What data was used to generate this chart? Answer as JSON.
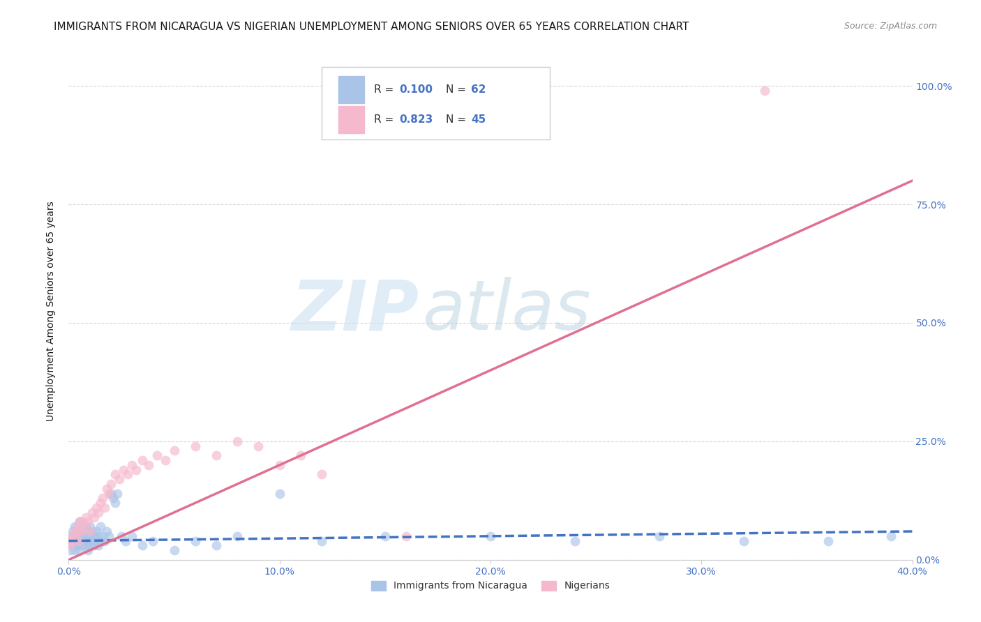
{
  "title": "IMMIGRANTS FROM NICARAGUA VS NIGERIAN UNEMPLOYMENT AMONG SENIORS OVER 65 YEARS CORRELATION CHART",
  "source": "Source: ZipAtlas.com",
  "xlabel_ticks": [
    "0.0%",
    "10.0%",
    "20.0%",
    "30.0%",
    "40.0%"
  ],
  "ylabel_ticks": [
    "0.0%",
    "25.0%",
    "50.0%",
    "75.0%",
    "100.0%"
  ],
  "ylabel_label": "Unemployment Among Seniors over 65 years",
  "xlim": [
    0.0,
    0.4
  ],
  "ylim": [
    0.0,
    1.05
  ],
  "watermark_zip": "ZIP",
  "watermark_atlas": "atlas",
  "bottom_legend": [
    {
      "label": "Immigrants from Nicaragua",
      "color": "#aac4e8"
    },
    {
      "label": "Nigerians",
      "color": "#f5b8cc"
    }
  ],
  "nicaragua_scatter_x": [
    0.001,
    0.001,
    0.002,
    0.002,
    0.002,
    0.003,
    0.003,
    0.003,
    0.004,
    0.004,
    0.004,
    0.005,
    0.005,
    0.005,
    0.006,
    0.006,
    0.007,
    0.007,
    0.008,
    0.008,
    0.008,
    0.009,
    0.009,
    0.01,
    0.01,
    0.01,
    0.011,
    0.011,
    0.012,
    0.012,
    0.013,
    0.013,
    0.014,
    0.014,
    0.015,
    0.015,
    0.016,
    0.017,
    0.018,
    0.019,
    0.02,
    0.021,
    0.022,
    0.023,
    0.025,
    0.027,
    0.03,
    0.035,
    0.04,
    0.05,
    0.06,
    0.07,
    0.08,
    0.1,
    0.12,
    0.15,
    0.2,
    0.24,
    0.28,
    0.32,
    0.36,
    0.39
  ],
  "nicaragua_scatter_y": [
    0.04,
    0.02,
    0.06,
    0.03,
    0.05,
    0.04,
    0.02,
    0.07,
    0.03,
    0.05,
    0.06,
    0.04,
    0.02,
    0.08,
    0.05,
    0.03,
    0.04,
    0.06,
    0.03,
    0.05,
    0.07,
    0.04,
    0.02,
    0.05,
    0.03,
    0.07,
    0.04,
    0.06,
    0.03,
    0.05,
    0.04,
    0.06,
    0.03,
    0.05,
    0.04,
    0.07,
    0.05,
    0.04,
    0.06,
    0.05,
    0.14,
    0.13,
    0.12,
    0.14,
    0.05,
    0.04,
    0.05,
    0.03,
    0.04,
    0.02,
    0.04,
    0.03,
    0.05,
    0.14,
    0.04,
    0.05,
    0.05,
    0.04,
    0.05,
    0.04,
    0.04,
    0.05
  ],
  "nigerian_scatter_x": [
    0.001,
    0.002,
    0.002,
    0.003,
    0.003,
    0.004,
    0.004,
    0.005,
    0.005,
    0.006,
    0.006,
    0.007,
    0.008,
    0.009,
    0.01,
    0.011,
    0.012,
    0.013,
    0.014,
    0.015,
    0.016,
    0.017,
    0.018,
    0.019,
    0.02,
    0.022,
    0.024,
    0.026,
    0.028,
    0.03,
    0.032,
    0.035,
    0.038,
    0.042,
    0.046,
    0.05,
    0.06,
    0.07,
    0.08,
    0.09,
    0.1,
    0.11,
    0.12,
    0.16,
    0.33
  ],
  "nigerian_scatter_y": [
    0.03,
    0.05,
    0.04,
    0.06,
    0.05,
    0.07,
    0.06,
    0.08,
    0.04,
    0.06,
    0.08,
    0.07,
    0.09,
    0.08,
    0.06,
    0.1,
    0.09,
    0.11,
    0.1,
    0.12,
    0.13,
    0.11,
    0.15,
    0.14,
    0.16,
    0.18,
    0.17,
    0.19,
    0.18,
    0.2,
    0.19,
    0.21,
    0.2,
    0.22,
    0.21,
    0.23,
    0.24,
    0.22,
    0.25,
    0.24,
    0.2,
    0.22,
    0.18,
    0.05,
    0.99
  ],
  "nicaragua_line_x": [
    0.0,
    0.4
  ],
  "nicaragua_line_y": [
    0.04,
    0.06
  ],
  "nigerian_line_x": [
    0.0,
    0.4
  ],
  "nigerian_line_y": [
    0.0,
    0.8
  ],
  "scatter_size": 100,
  "title_fontsize": 11,
  "source_fontsize": 9,
  "axis_label_fontsize": 10,
  "tick_fontsize": 10,
  "legend_fontsize": 11,
  "background_color": "#ffffff",
  "grid_color": "#cccccc",
  "nicaragua_scatter_color": "#aac4e8",
  "nigerian_scatter_color": "#f5b8cc",
  "nicaragua_line_color": "#4472c4",
  "nigerian_line_color": "#e07090",
  "tick_label_color": "#4472c4",
  "title_color": "#1a1a1a",
  "axis_label_color": "#1a1a1a",
  "r_n_color": "#4472c4"
}
